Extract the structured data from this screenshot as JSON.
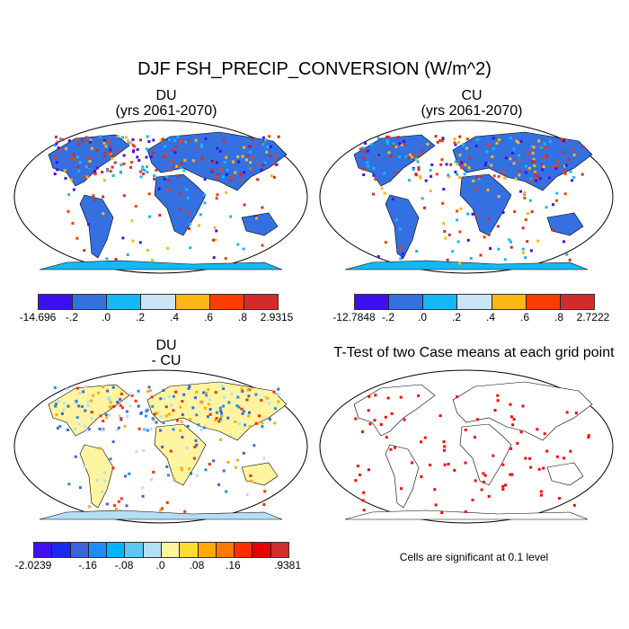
{
  "title": "DJF FSH_PRECIP_CONVERSION (W/m^2)",
  "panels": [
    {
      "title": "DU",
      "subtitle": "(yrs 2061-2070)",
      "colorbar": {
        "colors": [
          "#3d10f0",
          "#3470e0",
          "#14b8f5",
          "#c8e6f5",
          "#fdb714",
          "#ff3c00",
          "#d32b2b"
        ],
        "labels": [
          "-14.696",
          "-.2",
          ".0",
          ".2",
          ".4",
          ".6",
          ".8",
          "2.9315"
        ]
      }
    },
    {
      "title": "CU",
      "subtitle": "(yrs 2061-2070)",
      "colorbar": {
        "colors": [
          "#3d10f0",
          "#3470e0",
          "#14b8f5",
          "#c8e6f5",
          "#fdb714",
          "#ff3c00",
          "#d32b2b"
        ],
        "labels": [
          "-12.7848",
          "-.2",
          ".0",
          ".2",
          ".4",
          ".6",
          ".8",
          "2.7222"
        ]
      }
    },
    {
      "title": "DU",
      "subtitle": "- CU",
      "colorbar": {
        "colors": [
          "#4010f0",
          "#1a28f0",
          "#3c64dc",
          "#1e8cff",
          "#00b4ff",
          "#5ac8f0",
          "#b4def5",
          "#fff5a0",
          "#ffdc32",
          "#ffaa00",
          "#ff7800",
          "#ff2d00",
          "#e60000",
          "#d22d2d"
        ],
        "labels": [
          "-2.0239",
          "-.16",
          "-.08",
          ".0",
          ".08",
          ".16",
          ".9381"
        ]
      }
    },
    {
      "title": "T-Test of two Case means at each grid point",
      "note": "Cells are significant at 0.1 level"
    }
  ]
}
